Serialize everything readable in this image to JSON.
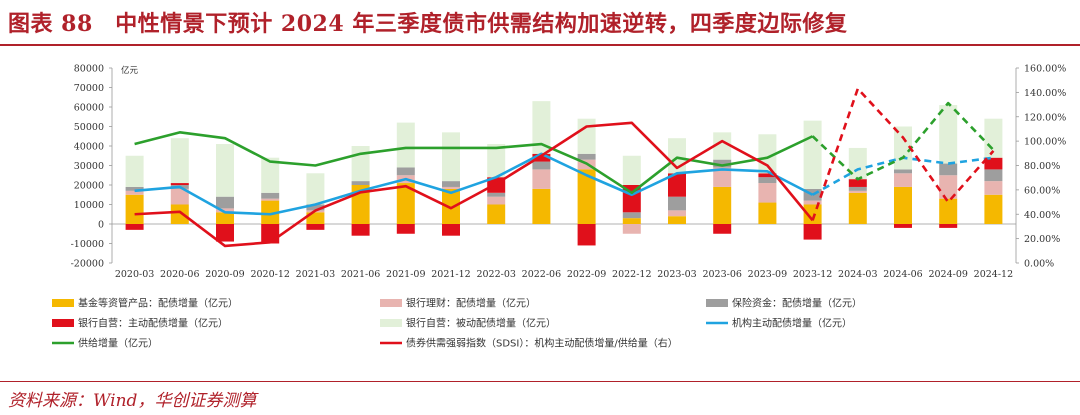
{
  "title": "图表 88　中性情景下预计 2024 年三季度债市供需结构加速逆转，四季度边际修复",
  "source": "资料来源：Wind，华创证券测算",
  "chart_data": {
    "type": "bar",
    "categories": [
      "2020-03",
      "2020-06",
      "2020-09",
      "2020-12",
      "2021-03",
      "2021-06",
      "2021-09",
      "2021-12",
      "2022-03",
      "2022-06",
      "2022-09",
      "2022-12",
      "2023-03",
      "2023-06",
      "2023-09",
      "2023-12",
      "2024-03",
      "2024-06",
      "2024-09",
      "2024-12"
    ],
    "left_unit": "亿元",
    "ylim": [
      -20000,
      80000
    ],
    "y_ticks": [
      -20000,
      -10000,
      0,
      10000,
      20000,
      30000,
      40000,
      50000,
      60000,
      70000,
      80000
    ],
    "y2lim": [
      0,
      160
    ],
    "y2_ticks": [
      "0.00%",
      "20.00%",
      "40.00%",
      "60.00%",
      "80.00%",
      "100.00%",
      "120.00%",
      "140.00%",
      "160.00%"
    ],
    "projected_from_index": 16,
    "bar_series": [
      {
        "name": "基金等资管产品：配债增量（亿元）",
        "color": "#f5b800",
        "values": [
          15000,
          10000,
          6000,
          12000,
          6000,
          20000,
          21000,
          18000,
          10000,
          18000,
          28000,
          3000,
          4000,
          19000,
          11000,
          10000,
          16000,
          19000,
          13000,
          15000
        ]
      },
      {
        "name": "银行理财：配债增量（亿元）",
        "color": "#e8b4b0",
        "values": [
          2000,
          8000,
          2000,
          1000,
          1000,
          0,
          4000,
          1000,
          4000,
          10000,
          5000,
          -5000,
          3000,
          10000,
          10000,
          2000,
          1000,
          7000,
          12000,
          7000
        ]
      },
      {
        "name": "保险资金：配债增量（亿元）",
        "color": "#9e9e9e",
        "values": [
          2000,
          2000,
          6000,
          3000,
          3000,
          2000,
          4000,
          3000,
          2000,
          4000,
          3000,
          3000,
          7000,
          4000,
          3000,
          6000,
          2000,
          2000,
          6000,
          6000
        ]
      },
      {
        "name": "银行自营：主动配债增量（亿元）",
        "color": "#e0101b",
        "values": [
          -3000,
          1000,
          -9000,
          -10000,
          -3000,
          -6000,
          -5000,
          -6000,
          8000,
          4000,
          -11000,
          14000,
          12000,
          -5000,
          2000,
          -8000,
          4000,
          -2000,
          -2000,
          6000
        ]
      },
      {
        "name": "银行自营：被动配债增量（亿元）",
        "color": "#e2f0d9",
        "values": [
          16000,
          23000,
          27000,
          18000,
          16000,
          18000,
          23000,
          25000,
          17000,
          27000,
          18000,
          15000,
          18000,
          14000,
          20000,
          35000,
          16000,
          22000,
          30000,
          20000
        ]
      }
    ],
    "line_series": [
      {
        "name": "机构主动配债增量（亿元）",
        "color": "#1fa3e0",
        "axis": "left",
        "values": [
          17000,
          19000,
          6000,
          5000,
          10000,
          17000,
          23000,
          16000,
          24000,
          36000,
          25000,
          15000,
          26000,
          28000,
          27000,
          15000,
          28000,
          34000,
          31000,
          34000
        ]
      },
      {
        "name": "供给增量（亿元）",
        "color": "#2ca02c",
        "axis": "left",
        "values": [
          41000,
          47000,
          44000,
          32000,
          30000,
          36000,
          39000,
          39000,
          39000,
          41000,
          31000,
          16000,
          34000,
          30000,
          34000,
          45000,
          23000,
          34000,
          62000,
          38000
        ]
      },
      {
        "name": "债券供需强弱指数（SDSI）：机构主动配债增量/供给量（右）",
        "color": "#e0101b",
        "axis": "right",
        "values": [
          40,
          42,
          14,
          17,
          43,
          58,
          63,
          45,
          65,
          88,
          112,
          115,
          78,
          100,
          80,
          35,
          143,
          103,
          50,
          92
        ]
      }
    ]
  }
}
